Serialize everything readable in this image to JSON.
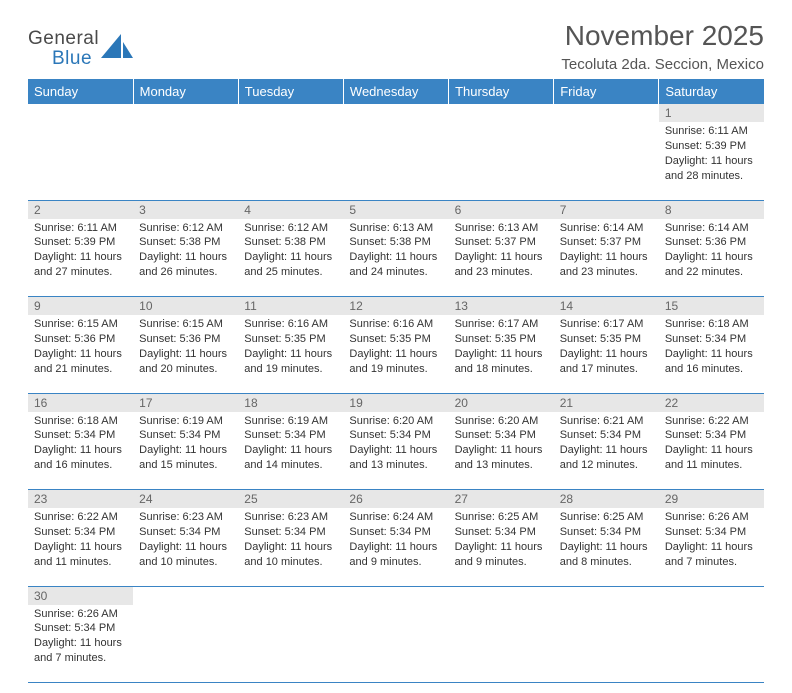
{
  "brand": {
    "name1": "General",
    "name2": "Blue"
  },
  "title": "November 2025",
  "subtitle": "Tecoluta 2da. Seccion, Mexico",
  "colors": {
    "header_bg": "#3a84c4",
    "header_text": "#ffffff",
    "daynum_bg": "#e7e7e7",
    "daynum_text": "#666666",
    "border": "#3a84c4",
    "title_text": "#555555",
    "body_text": "#333333",
    "logo_gray": "#4a4a4a",
    "logo_blue": "#2b77b8"
  },
  "week_days": [
    "Sunday",
    "Monday",
    "Tuesday",
    "Wednesday",
    "Thursday",
    "Friday",
    "Saturday"
  ],
  "weeks": [
    [
      null,
      null,
      null,
      null,
      null,
      null,
      {
        "day": "1",
        "sunrise": "6:11 AM",
        "sunset": "5:39 PM",
        "daylight": "11 hours and 28 minutes."
      }
    ],
    [
      {
        "day": "2",
        "sunrise": "6:11 AM",
        "sunset": "5:39 PM",
        "daylight": "11 hours and 27 minutes."
      },
      {
        "day": "3",
        "sunrise": "6:12 AM",
        "sunset": "5:38 PM",
        "daylight": "11 hours and 26 minutes."
      },
      {
        "day": "4",
        "sunrise": "6:12 AM",
        "sunset": "5:38 PM",
        "daylight": "11 hours and 25 minutes."
      },
      {
        "day": "5",
        "sunrise": "6:13 AM",
        "sunset": "5:38 PM",
        "daylight": "11 hours and 24 minutes."
      },
      {
        "day": "6",
        "sunrise": "6:13 AM",
        "sunset": "5:37 PM",
        "daylight": "11 hours and 23 minutes."
      },
      {
        "day": "7",
        "sunrise": "6:14 AM",
        "sunset": "5:37 PM",
        "daylight": "11 hours and 23 minutes."
      },
      {
        "day": "8",
        "sunrise": "6:14 AM",
        "sunset": "5:36 PM",
        "daylight": "11 hours and 22 minutes."
      }
    ],
    [
      {
        "day": "9",
        "sunrise": "6:15 AM",
        "sunset": "5:36 PM",
        "daylight": "11 hours and 21 minutes."
      },
      {
        "day": "10",
        "sunrise": "6:15 AM",
        "sunset": "5:36 PM",
        "daylight": "11 hours and 20 minutes."
      },
      {
        "day": "11",
        "sunrise": "6:16 AM",
        "sunset": "5:35 PM",
        "daylight": "11 hours and 19 minutes."
      },
      {
        "day": "12",
        "sunrise": "6:16 AM",
        "sunset": "5:35 PM",
        "daylight": "11 hours and 19 minutes."
      },
      {
        "day": "13",
        "sunrise": "6:17 AM",
        "sunset": "5:35 PM",
        "daylight": "11 hours and 18 minutes."
      },
      {
        "day": "14",
        "sunrise": "6:17 AM",
        "sunset": "5:35 PM",
        "daylight": "11 hours and 17 minutes."
      },
      {
        "day": "15",
        "sunrise": "6:18 AM",
        "sunset": "5:34 PM",
        "daylight": "11 hours and 16 minutes."
      }
    ],
    [
      {
        "day": "16",
        "sunrise": "6:18 AM",
        "sunset": "5:34 PM",
        "daylight": "11 hours and 16 minutes."
      },
      {
        "day": "17",
        "sunrise": "6:19 AM",
        "sunset": "5:34 PM",
        "daylight": "11 hours and 15 minutes."
      },
      {
        "day": "18",
        "sunrise": "6:19 AM",
        "sunset": "5:34 PM",
        "daylight": "11 hours and 14 minutes."
      },
      {
        "day": "19",
        "sunrise": "6:20 AM",
        "sunset": "5:34 PM",
        "daylight": "11 hours and 13 minutes."
      },
      {
        "day": "20",
        "sunrise": "6:20 AM",
        "sunset": "5:34 PM",
        "daylight": "11 hours and 13 minutes."
      },
      {
        "day": "21",
        "sunrise": "6:21 AM",
        "sunset": "5:34 PM",
        "daylight": "11 hours and 12 minutes."
      },
      {
        "day": "22",
        "sunrise": "6:22 AM",
        "sunset": "5:34 PM",
        "daylight": "11 hours and 11 minutes."
      }
    ],
    [
      {
        "day": "23",
        "sunrise": "6:22 AM",
        "sunset": "5:34 PM",
        "daylight": "11 hours and 11 minutes."
      },
      {
        "day": "24",
        "sunrise": "6:23 AM",
        "sunset": "5:34 PM",
        "daylight": "11 hours and 10 minutes."
      },
      {
        "day": "25",
        "sunrise": "6:23 AM",
        "sunset": "5:34 PM",
        "daylight": "11 hours and 10 minutes."
      },
      {
        "day": "26",
        "sunrise": "6:24 AM",
        "sunset": "5:34 PM",
        "daylight": "11 hours and 9 minutes."
      },
      {
        "day": "27",
        "sunrise": "6:25 AM",
        "sunset": "5:34 PM",
        "daylight": "11 hours and 9 minutes."
      },
      {
        "day": "28",
        "sunrise": "6:25 AM",
        "sunset": "5:34 PM",
        "daylight": "11 hours and 8 minutes."
      },
      {
        "day": "29",
        "sunrise": "6:26 AM",
        "sunset": "5:34 PM",
        "daylight": "11 hours and 7 minutes."
      }
    ],
    [
      {
        "day": "30",
        "sunrise": "6:26 AM",
        "sunset": "5:34 PM",
        "daylight": "11 hours and 7 minutes."
      },
      null,
      null,
      null,
      null,
      null,
      null
    ]
  ],
  "labels": {
    "sunrise": "Sunrise: ",
    "sunset": "Sunset: ",
    "daylight": "Daylight: "
  }
}
